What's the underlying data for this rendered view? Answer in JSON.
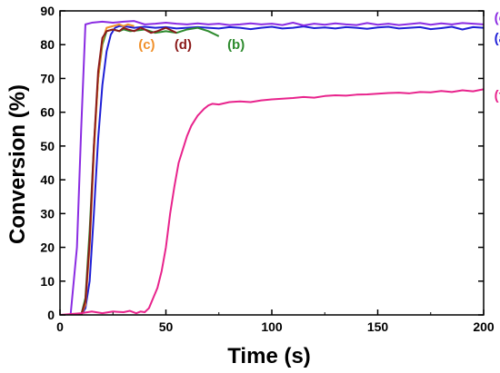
{
  "chart_data": {
    "type": "line",
    "xlabel": "Time (s)",
    "ylabel": "Conversion (%)",
    "xlim": [
      0,
      200
    ],
    "ylim": [
      0,
      90
    ],
    "xticks": [
      0,
      50,
      100,
      150,
      200
    ],
    "yticks": [
      0,
      10,
      20,
      30,
      40,
      50,
      60,
      70,
      80,
      90
    ],
    "grid": false,
    "legend": "inline labels",
    "series": [
      {
        "name": "(a)",
        "color": "#1f1fd6",
        "x": [
          0,
          8,
          10,
          12,
          14,
          16,
          18,
          20,
          22,
          24,
          26,
          28,
          30,
          35,
          40,
          45,
          50,
          55,
          60,
          65,
          70,
          75,
          80,
          85,
          90,
          95,
          100,
          105,
          110,
          115,
          120,
          125,
          130,
          135,
          140,
          145,
          150,
          155,
          160,
          165,
          170,
          175,
          180,
          185,
          190,
          195,
          200
        ],
        "y": [
          0,
          0,
          0,
          2,
          10,
          30,
          52,
          68,
          78,
          83,
          85,
          85.5,
          85.5,
          85,
          85.3,
          85,
          85.2,
          84.8,
          85,
          85.2,
          85,
          84.8,
          85.2,
          85,
          84.6,
          85,
          85.3,
          84.8,
          85,
          85.4,
          84.9,
          85.1,
          84.8,
          85.2,
          85,
          84.7,
          85.1,
          85.3,
          84.8,
          85,
          85.2,
          84.6,
          84.9,
          85.3,
          84.5,
          85.2,
          85
        ]
      },
      {
        "name": "(b)",
        "color": "#2e8b2e",
        "x": [
          0,
          8,
          10,
          12,
          14,
          16,
          18,
          20,
          22,
          25,
          28,
          30,
          33,
          36,
          40,
          45,
          50,
          55,
          60,
          65,
          70,
          75
        ],
        "y": [
          0,
          0,
          0,
          5,
          25,
          50,
          70,
          80,
          84,
          84.5,
          84,
          84.5,
          84,
          84.2,
          84.5,
          83.5,
          84,
          83.5,
          84.5,
          85,
          84,
          82.5
        ]
      },
      {
        "name": "(c)",
        "color": "#f0902a",
        "x": [
          0,
          8,
          10,
          12,
          14,
          16,
          18,
          20,
          22,
          25,
          28,
          30,
          32,
          35
        ],
        "y": [
          0,
          0,
          0,
          3,
          20,
          48,
          70,
          81,
          85,
          85.5,
          86,
          85.5,
          86,
          85.5
        ]
      },
      {
        "name": "(d)",
        "color": "#8b1a1a",
        "x": [
          0,
          8,
          10,
          12,
          14,
          16,
          18,
          20,
          22,
          25,
          28,
          30,
          32,
          35,
          38,
          40,
          43,
          46,
          50,
          55
        ],
        "y": [
          0,
          0,
          0,
          4,
          22,
          50,
          72,
          82,
          84,
          84.5,
          84,
          85,
          84.5,
          84,
          85,
          84.5,
          83.5,
          84,
          85,
          83.5
        ]
      },
      {
        "name": "(e)",
        "color": "#8a2be2",
        "x": [
          0,
          5,
          8,
          10,
          12,
          15,
          20,
          25,
          30,
          35,
          40,
          45,
          50,
          55,
          60,
          65,
          70,
          75,
          80,
          85,
          90,
          95,
          100,
          105,
          110,
          115,
          120,
          125,
          130,
          135,
          140,
          145,
          150,
          155,
          160,
          165,
          170,
          175,
          180,
          185,
          190,
          195,
          200
        ],
        "y": [
          0,
          0,
          20,
          55,
          86,
          86.5,
          86.8,
          86.5,
          86.8,
          87,
          86,
          86.2,
          86.5,
          86.2,
          86,
          86.3,
          86,
          86.2,
          85.8,
          86,
          86.3,
          86,
          86.2,
          85.8,
          86.5,
          85.7,
          86.2,
          85.9,
          86.3,
          86,
          85.8,
          86.4,
          85.9,
          86.2,
          85.8,
          86.1,
          86.4,
          85.9,
          86.3,
          86,
          86.4,
          86.2,
          86
        ]
      },
      {
        "name": "(f)",
        "color": "#e8238c",
        "x": [
          0,
          10,
          15,
          20,
          25,
          30,
          33,
          36,
          38,
          40,
          42,
          44,
          46,
          48,
          50,
          52,
          54,
          56,
          58,
          60,
          62,
          65,
          68,
          70,
          72,
          75,
          80,
          85,
          90,
          95,
          100,
          105,
          110,
          115,
          120,
          125,
          130,
          135,
          140,
          145,
          150,
          155,
          160,
          165,
          170,
          175,
          180,
          185,
          190,
          195,
          200
        ],
        "y": [
          0,
          0.5,
          1,
          0.5,
          1,
          0.8,
          1.2,
          0.5,
          1,
          0.8,
          2,
          5,
          8,
          13,
          20,
          30,
          38,
          45,
          49,
          53,
          56,
          59,
          61,
          62,
          62.5,
          62.3,
          63,
          63.2,
          63,
          63.5,
          63.8,
          64,
          64.2,
          64.5,
          64.3,
          64.8,
          65,
          64.9,
          65.2,
          65.3,
          65.5,
          65.7,
          65.8,
          65.6,
          66,
          65.9,
          66.3,
          66,
          66.5,
          66.2,
          66.8
        ]
      }
    ]
  },
  "labels": [
    {
      "text": "(e)",
      "color": "#8a2be2",
      "x": 205,
      "y": 88
    },
    {
      "text": "(a)",
      "color": "#1f1fd6",
      "x": 205,
      "y": 82
    },
    {
      "text": "(c)",
      "color": "#f0902a",
      "x": 37,
      "y": 80
    },
    {
      "text": "(d)",
      "color": "#8b1a1a",
      "x": 54,
      "y": 80
    },
    {
      "text": "(b)",
      "color": "#2e8b2e",
      "x": 79,
      "y": 80
    },
    {
      "text": "(f)",
      "color": "#e8238c",
      "x": 205,
      "y": 65
    }
  ]
}
